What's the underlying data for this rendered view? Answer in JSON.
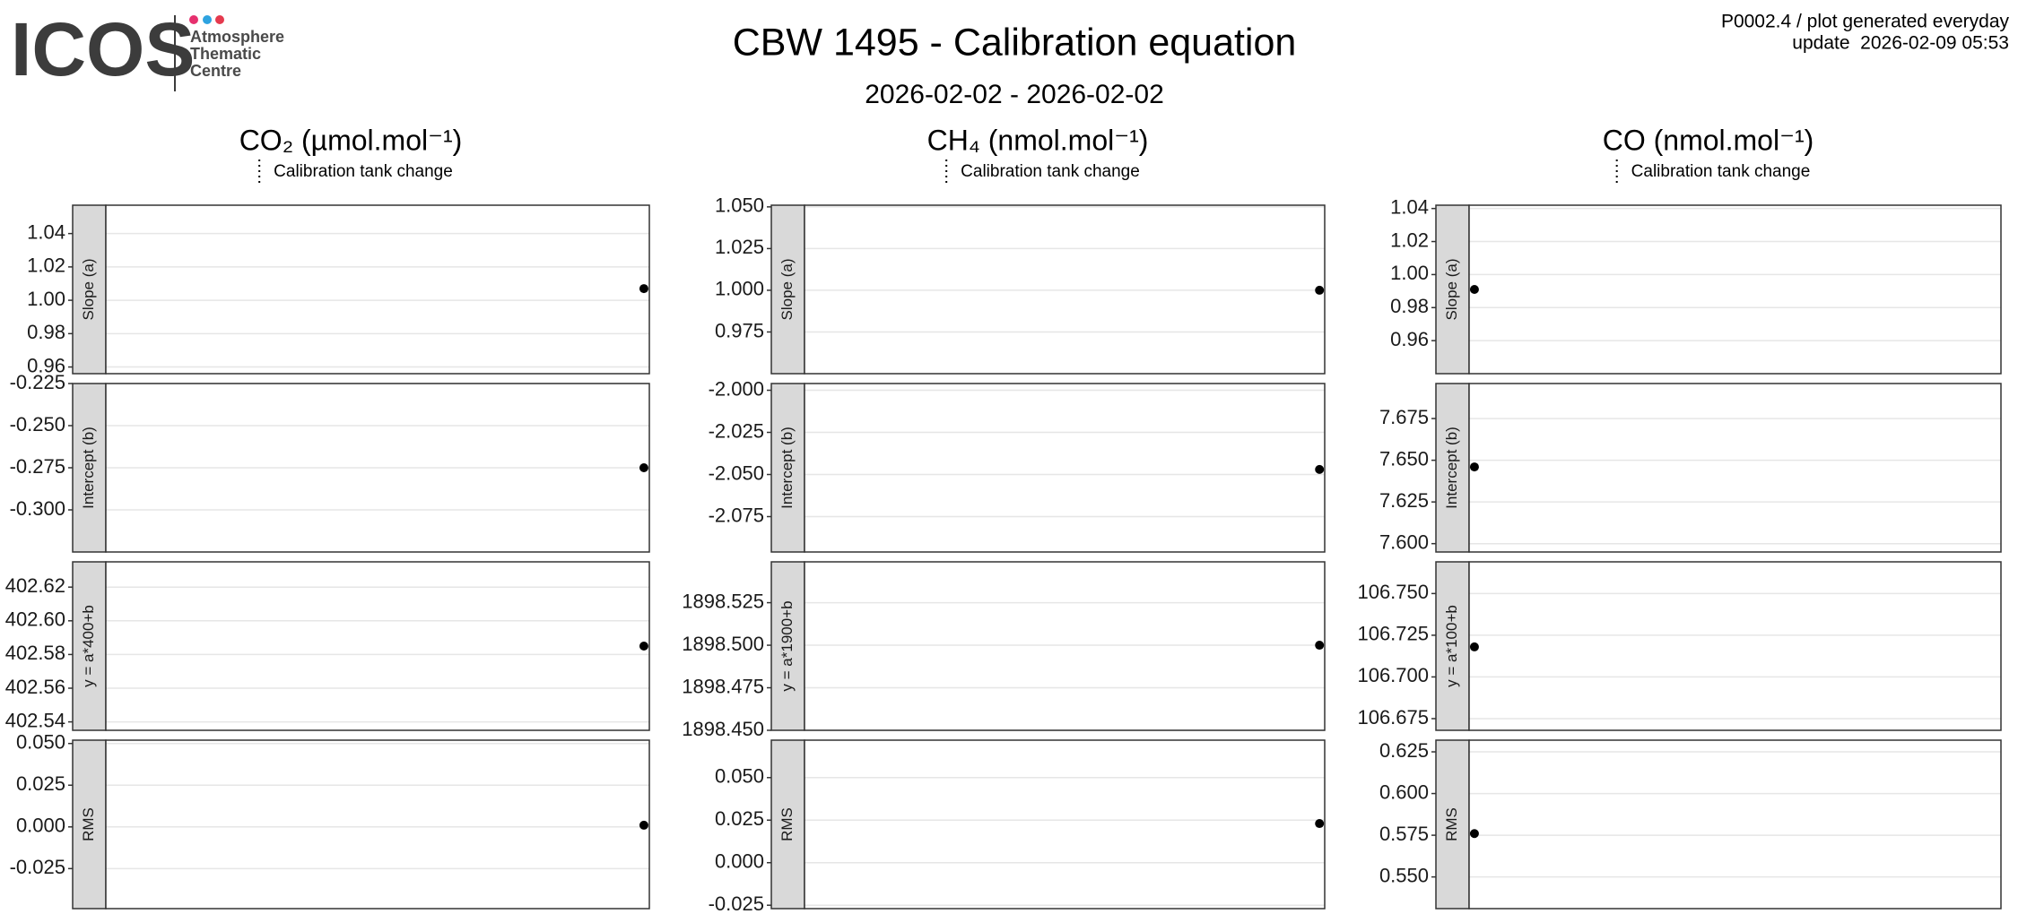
{
  "logo": {
    "text": "ICOS",
    "lines": [
      "Atmosphere",
      "Thematic",
      "Centre"
    ]
  },
  "title": "CBW 1495 - Calibration equation",
  "subtitle": "2026-02-02 - 2026-02-02",
  "note": [
    "P0002.4 / plot generated everyday",
    "update  2026-02-09 05:53"
  ],
  "chart_data": [
    {
      "type": "scatter",
      "title": "CO₂ (µmol.mol⁻¹)",
      "legend": "Calibration tank change",
      "color": "#000000",
      "grid": true,
      "panels": [
        {
          "label": "Slope (a)",
          "values": [
            1.007
          ],
          "ylim": [
            0.956,
            1.057
          ],
          "yticks": [
            0.96,
            0.98,
            {
              "value": 1.0,
              "label": "1.00"
            },
            1.02,
            1.04
          ]
        },
        {
          "label": "Intercept (b)",
          "values": [
            -0.275
          ],
          "ylim": [
            -0.325,
            -0.225
          ],
          "yticks": [
            {
              "value": -0.3,
              "label": "-0.300"
            },
            -0.275,
            {
              "value": -0.25,
              "label": "-0.250"
            },
            -0.225
          ]
        },
        {
          "label": "y = a*400+b",
          "values": [
            402.585
          ],
          "ylim": [
            402.535,
            402.635
          ],
          "yticks": [
            402.54,
            402.56,
            402.58,
            {
              "value": 402.6,
              "label": "402.60"
            },
            402.62
          ]
        },
        {
          "label": "RMS",
          "values": [
            0.001
          ],
          "ylim": [
            -0.049,
            0.052
          ],
          "yticks": [
            -0.025,
            {
              "value": 0,
              "label": "0.000"
            },
            0.025,
            {
              "value": 0.05,
              "label": "0.050"
            }
          ]
        }
      ]
    },
    {
      "type": "scatter",
      "title": "CH₄ (nmol.mol⁻¹)",
      "legend": "Calibration tank change",
      "color": "#000000",
      "grid": true,
      "panels": [
        {
          "label": "Slope (a)",
          "values": [
            1.0
          ],
          "ylim": [
            0.95,
            1.051
          ],
          "yticks": [
            0.975,
            {
              "value": 1.0,
              "label": "1.000"
            },
            1.025,
            {
              "value": 1.05,
              "label": "1.050"
            }
          ]
        },
        {
          "label": "Intercept (b)",
          "values": [
            -2.047
          ],
          "ylim": [
            -2.096,
            -1.996
          ],
          "yticks": [
            -2.075,
            {
              "value": -2.05,
              "label": "-2.050"
            },
            -2.025,
            {
              "value": -2.0,
              "label": "-2.000"
            }
          ]
        },
        {
          "label": "y = a*1900+b",
          "values": [
            1898.5
          ],
          "ylim": [
            1898.45,
            1898.549
          ],
          "yticks": [
            {
              "value": 1898.45,
              "label": "1898.450"
            },
            1898.475,
            {
              "value": 1898.5,
              "label": "1898.500"
            },
            1898.525
          ]
        },
        {
          "label": "RMS",
          "values": [
            0.023
          ],
          "ylim": [
            -0.027,
            0.072
          ],
          "yticks": [
            -0.025,
            {
              "value": 0,
              "label": "0.000"
            },
            0.025,
            {
              "value": 0.05,
              "label": "0.050"
            }
          ]
        }
      ]
    },
    {
      "type": "scatter",
      "title": "CO (nmol.mol⁻¹)",
      "legend": "Calibration tank change",
      "color": "#000000",
      "grid": true,
      "panels": [
        {
          "label": "Slope (a)",
          "values": [
            0.991
          ],
          "ylim": [
            0.94,
            1.042
          ],
          "yticks": [
            0.96,
            0.98,
            {
              "value": 1.0,
              "label": "1.00"
            },
            1.02,
            1.04
          ]
        },
        {
          "label": "Intercept (b)",
          "values": [
            7.646
          ],
          "ylim": [
            7.595,
            7.696
          ],
          "yticks": [
            {
              "value": 7.6,
              "label": "7.600"
            },
            7.625,
            {
              "value": 7.65,
              "label": "7.650"
            },
            7.675
          ]
        },
        {
          "label": "y = a*100+b",
          "values": [
            106.718
          ],
          "ylim": [
            106.668,
            106.769
          ],
          "yticks": [
            106.675,
            {
              "value": 106.7,
              "label": "106.700"
            },
            106.725,
            {
              "value": 106.75,
              "label": "106.750"
            }
          ]
        },
        {
          "label": "RMS",
          "values": [
            0.576
          ],
          "ylim": [
            0.531,
            0.632
          ],
          "yticks": [
            {
              "value": 0.55,
              "label": "0.550"
            },
            0.575,
            {
              "value": 0.6,
              "label": "0.600"
            },
            0.625
          ]
        }
      ]
    }
  ]
}
